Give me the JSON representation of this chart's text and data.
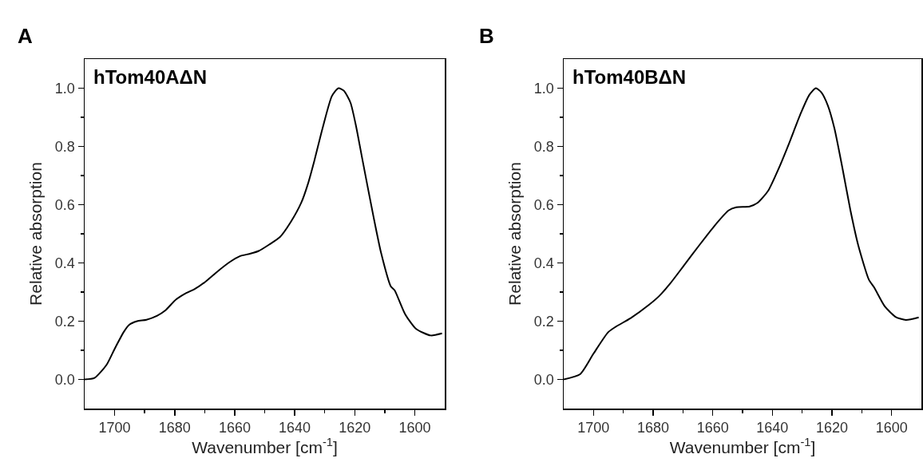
{
  "chart_data": [
    {
      "type": "line",
      "title": "A",
      "annotations": [
        "hTom40AΔN"
      ],
      "xlabel": "Wavenumber [cm$^{-1}$]",
      "ylabel": "Relative absorption",
      "xlim": [
        1710,
        1590
      ],
      "ylim": [
        -0.1,
        1.1
      ],
      "xticks": [
        1700,
        1680,
        1660,
        1640,
        1620,
        1600,
        {
          "value": 1690,
          "label": null
        },
        {
          "value": 1670,
          "label": null
        },
        {
          "value": 1650,
          "label": null
        },
        {
          "value": 1630,
          "label": null
        },
        {
          "value": 1610,
          "label": null
        }
      ],
      "yticks": [
        {
          "value": 0,
          "label": "0.0"
        },
        {
          "value": 0.2,
          "label": "0.2"
        },
        {
          "value": 0.4,
          "label": "0.4"
        },
        {
          "value": 0.6,
          "label": "0.6"
        },
        {
          "value": 0.8,
          "label": "0.8"
        },
        {
          "value": 1.0,
          "label": "1.0"
        },
        {
          "value": 0.1,
          "label": null
        },
        {
          "value": 0.3,
          "label": null
        },
        {
          "value": 0.5,
          "label": null
        },
        {
          "value": 0.7,
          "label": null
        },
        {
          "value": 0.9,
          "label": null
        }
      ],
      "grid": false,
      "marker": "none",
      "line_style": "solid",
      "series": [
        {
          "color": "#000000",
          "x": [
            1710,
            1706.7,
            1702.7,
            1700,
            1696.9,
            1695.2,
            1692.5,
            1689.4,
            1685.8,
            1683.1,
            1679.6,
            1676.1,
            1673.4,
            1669.8,
            1665.8,
            1661.8,
            1658.3,
            1654.7,
            1652,
            1648.5,
            1644.9,
            1641.4,
            1637.8,
            1635.6,
            1633.4,
            1630.7,
            1627.6,
            1625.4,
            1623.6,
            1621.4,
            1619.6,
            1617.4,
            1613.8,
            1611.2,
            1608,
            1606.7,
            1603.2,
            1599.6,
            1594.7,
            1590.9
          ],
          "values": [
            0.0,
            0.005,
            0.05,
            0.105,
            0.164,
            0.187,
            0.2,
            0.205,
            0.219,
            0.237,
            0.274,
            0.297,
            0.31,
            0.335,
            0.37,
            0.402,
            0.423,
            0.432,
            0.441,
            0.463,
            0.489,
            0.539,
            0.607,
            0.671,
            0.753,
            0.863,
            0.973,
            1.0,
            0.991,
            0.95,
            0.872,
            0.753,
            0.562,
            0.434,
            0.32,
            0.306,
            0.224,
            0.174,
            0.151,
            0.158
          ]
        }
      ]
    },
    {
      "type": "line",
      "title": "B",
      "annotations": [
        "hTom40BΔN"
      ],
      "xlabel": "Wavenumber [cm$^{-1}$]",
      "ylabel": "Relative absorption",
      "xlim": [
        1710,
        1590
      ],
      "ylim": [
        -0.1,
        1.1
      ],
      "xticks": [
        1700,
        1680,
        1660,
        1640,
        1620,
        1600,
        {
          "value": 1690,
          "label": null
        },
        {
          "value": 1670,
          "label": null
        },
        {
          "value": 1650,
          "label": null
        },
        {
          "value": 1630,
          "label": null
        },
        {
          "value": 1610,
          "label": null
        }
      ],
      "yticks": [
        {
          "value": 0,
          "label": "0.0"
        },
        {
          "value": 0.2,
          "label": "0.2"
        },
        {
          "value": 0.4,
          "label": "0.4"
        },
        {
          "value": 0.6,
          "label": "0.6"
        },
        {
          "value": 0.8,
          "label": "0.8"
        },
        {
          "value": 1.0,
          "label": "1.0"
        },
        {
          "value": 0.1,
          "label": null
        },
        {
          "value": 0.3,
          "label": null
        },
        {
          "value": 0.5,
          "label": null
        },
        {
          "value": 0.7,
          "label": null
        },
        {
          "value": 0.9,
          "label": null
        }
      ],
      "grid": false,
      "marker": "none",
      "line_style": "solid",
      "series": [
        {
          "color": "#000000",
          "x": [
            1710,
            1704.5,
            1700.1,
            1695.1,
            1692.5,
            1687.6,
            1681.4,
            1677.8,
            1674.3,
            1669.9,
            1664.5,
            1659.2,
            1654.7,
            1652.1,
            1647.6,
            1644.9,
            1641.4,
            1637.8,
            1634.3,
            1630.7,
            1627.6,
            1625.4,
            1623.6,
            1621.4,
            1619.2,
            1616.5,
            1613.8,
            1611.2,
            1607.6,
            1605.8,
            1602.3,
            1598.7,
            1595.2,
            1590.9
          ],
          "values": [
            0.0,
            0.018,
            0.087,
            0.162,
            0.181,
            0.21,
            0.256,
            0.288,
            0.329,
            0.388,
            0.461,
            0.53,
            0.58,
            0.591,
            0.594,
            0.607,
            0.648,
            0.726,
            0.813,
            0.908,
            0.977,
            1.0,
            0.986,
            0.941,
            0.863,
            0.726,
            0.58,
            0.461,
            0.342,
            0.315,
            0.251,
            0.215,
            0.204,
            0.213
          ]
        }
      ]
    }
  ]
}
